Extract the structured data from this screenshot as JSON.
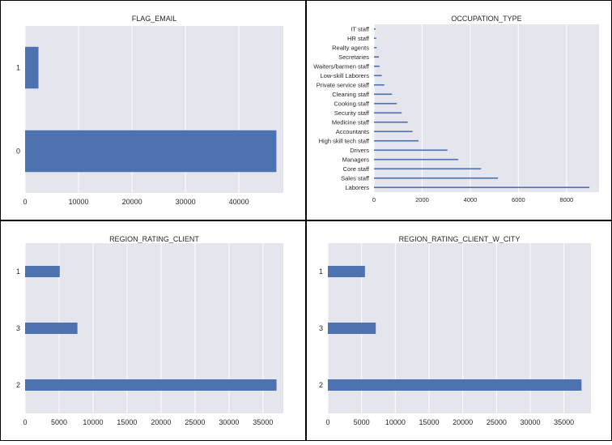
{
  "colors": {
    "bar": "#4c72b0",
    "plot_bg": "#e5e5ee",
    "grid": "#ffffff",
    "border": "#000000",
    "text": "#262626"
  },
  "chart_data": [
    {
      "type": "bar",
      "orientation": "horizontal",
      "title": "FLAG_EMAIL",
      "categories": [
        "0",
        "1"
      ],
      "values": [
        47000,
        2500
      ],
      "xlim": [
        0,
        48300
      ],
      "xticks": [
        0,
        10000,
        20000,
        30000,
        40000
      ],
      "xtick_labels": [
        "0",
        "10000",
        "20000",
        "30000",
        "40000"
      ],
      "grid": true
    },
    {
      "type": "bar",
      "orientation": "horizontal",
      "title": "OCCUPATION_TYPE",
      "categories": [
        "Laborers",
        "Sales staff",
        "Core staff",
        "Managers",
        "Drivers",
        "High skill tech staff",
        "Accountants",
        "Medicine staff",
        "Security staff",
        "Cooking staff",
        "Cleaning staff",
        "Private service staff",
        "Low-skill Laborers",
        "Waiters/barmen staff",
        "Secretaries",
        "Realty agents",
        "HR staff",
        "IT staff"
      ],
      "values": [
        8950,
        5150,
        4450,
        3500,
        3050,
        1850,
        1600,
        1400,
        1150,
        950,
        750,
        430,
        320,
        230,
        200,
        110,
        90,
        70
      ],
      "xlim": [
        0,
        9350
      ],
      "xticks": [
        0,
        2000,
        4000,
        6000,
        8000
      ],
      "xtick_labels": [
        "0",
        "2000",
        "4000",
        "6000",
        "8000"
      ],
      "grid": true
    },
    {
      "type": "bar",
      "orientation": "horizontal",
      "title": "REGION_RATING_CLIENT",
      "categories": [
        "2",
        "3",
        "1"
      ],
      "values": [
        37000,
        7700,
        5100
      ],
      "xlim": [
        0,
        38000
      ],
      "xticks": [
        0,
        5000,
        10000,
        15000,
        20000,
        25000,
        30000,
        35000
      ],
      "xtick_labels": [
        "0",
        "5000",
        "10000",
        "15000",
        "20000",
        "25000",
        "30000",
        "35000"
      ],
      "grid": true
    },
    {
      "type": "bar",
      "orientation": "horizontal",
      "title": "REGION_RATING_CLIENT_W_CITY",
      "categories": [
        "2",
        "3",
        "1"
      ],
      "values": [
        37600,
        7100,
        5500
      ],
      "xlim": [
        0,
        39000
      ],
      "xticks": [
        0,
        5000,
        10000,
        15000,
        20000,
        25000,
        30000,
        35000
      ],
      "xtick_labels": [
        "0",
        "5000",
        "10000",
        "15000",
        "20000",
        "25000",
        "30000",
        "35000"
      ],
      "grid": true
    }
  ]
}
